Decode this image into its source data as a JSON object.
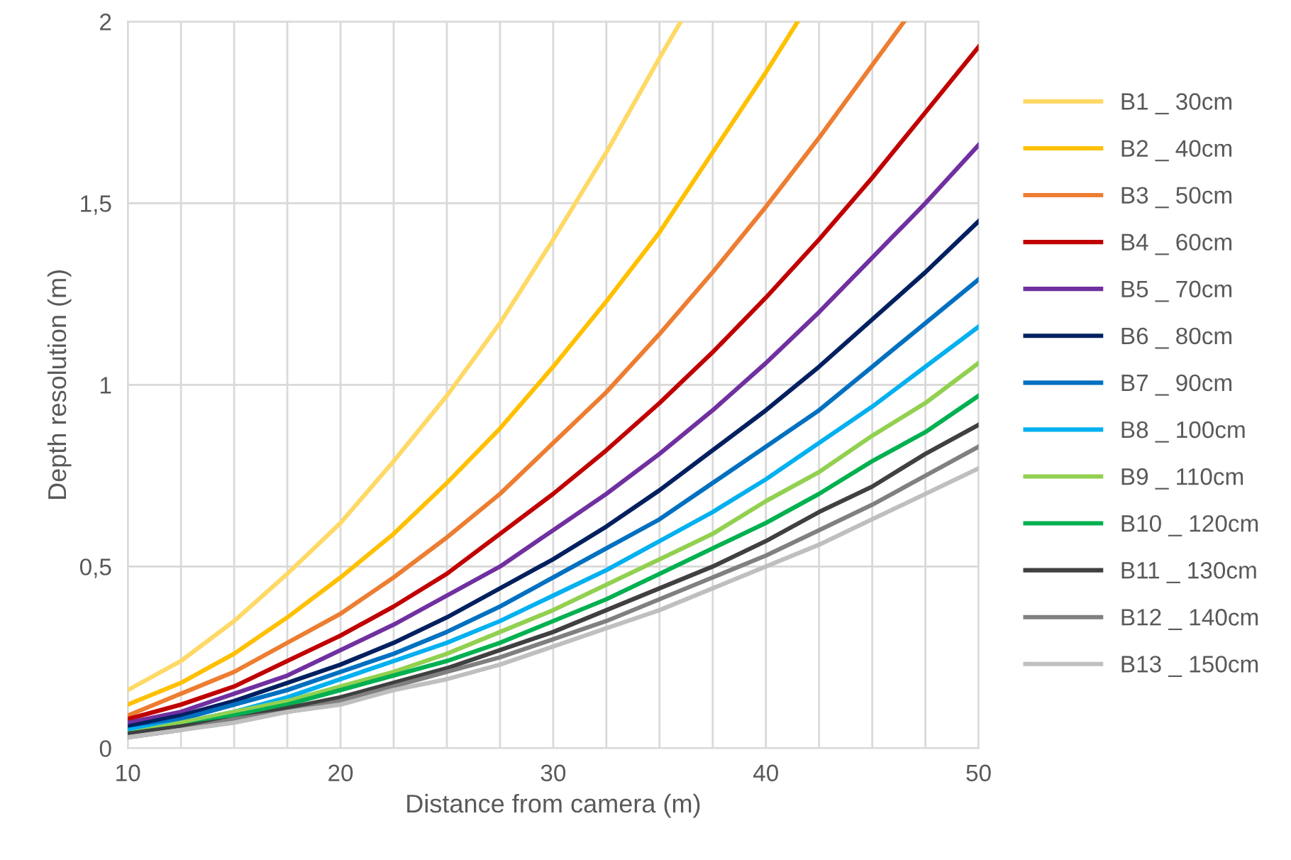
{
  "chart_data": {
    "type": "line",
    "xlabel": "Distance from camera (m)",
    "ylabel": "Depth resolution (m)",
    "x": [
      10,
      12.5,
      15,
      17.5,
      20,
      22.5,
      25,
      27.5,
      30,
      32.5,
      35,
      37.5,
      40,
      42.5,
      45,
      47.5,
      50
    ],
    "xlim": [
      10,
      50
    ],
    "ylim": [
      0,
      2
    ],
    "xticks": [
      10,
      {
        "value": 12.5,
        "label": null
      },
      {
        "value": 15,
        "label": null
      },
      {
        "value": 17.5,
        "label": null
      },
      20,
      {
        "value": 22.5,
        "label": null
      },
      {
        "value": 25,
        "label": null
      },
      {
        "value": 27.5,
        "label": null
      },
      30,
      {
        "value": 32.5,
        "label": null
      },
      {
        "value": 35,
        "label": null
      },
      {
        "value": 37.5,
        "label": null
      },
      40,
      {
        "value": 42.5,
        "label": null
      },
      {
        "value": 45,
        "label": null
      },
      {
        "value": 47.5,
        "label": null
      },
      50
    ],
    "yticks": [
      0,
      {
        "value": 0.5,
        "label": "0,5"
      },
      1,
      {
        "value": 1.5,
        "label": "1,5"
      },
      2
    ],
    "grid": true,
    "legend": "right",
    "marker": "none",
    "line_style": "solid",
    "series": [
      {
        "name": "B1 _ 30cm",
        "color": "#ffd966",
        "x": [
          10,
          12.5,
          15,
          17.5,
          20,
          22.5,
          25,
          27.5,
          30,
          32.5,
          35,
          36
        ],
        "values": [
          0.16,
          0.24,
          0.35,
          0.48,
          0.62,
          0.79,
          0.97,
          1.17,
          1.4,
          1.64,
          1.9,
          2
        ]
      },
      {
        "name": "B2 _ 40cm",
        "color": "#ffc000",
        "x": [
          10,
          12.5,
          15,
          17.5,
          20,
          22.5,
          25,
          27.5,
          30,
          32.5,
          35,
          37.5,
          40,
          41.5
        ],
        "values": [
          0.12,
          0.18,
          0.26,
          0.36,
          0.47,
          0.59,
          0.73,
          0.88,
          1.05,
          1.23,
          1.42,
          1.64,
          1.86,
          2
        ]
      },
      {
        "name": "B3 _ 50cm",
        "color": "#ed7d31",
        "x": [
          10,
          12.5,
          15,
          17.5,
          20,
          22.5,
          25,
          27.5,
          30,
          32.5,
          35,
          37.5,
          40,
          42.5,
          45,
          46.5
        ],
        "values": [
          0.09,
          0.15,
          0.21,
          0.29,
          0.37,
          0.47,
          0.58,
          0.7,
          0.84,
          0.98,
          1.14,
          1.31,
          1.49,
          1.68,
          1.88,
          2
        ]
      },
      {
        "name": "B4 _ 60cm",
        "color": "#c00000",
        "values": [
          0.08,
          0.12,
          0.17,
          0.24,
          0.31,
          0.39,
          0.48,
          0.59,
          0.7,
          0.82,
          0.95,
          1.09,
          1.24,
          1.4,
          1.57,
          1.75,
          1.93
        ]
      },
      {
        "name": "B5 _ 70cm",
        "color": "#7030a0",
        "values": [
          0.07,
          0.1,
          0.15,
          0.2,
          0.27,
          0.34,
          0.42,
          0.5,
          0.6,
          0.7,
          0.81,
          0.93,
          1.06,
          1.2,
          1.35,
          1.5,
          1.66
        ]
      },
      {
        "name": "B6 _ 80cm",
        "color": "#002060",
        "values": [
          0.06,
          0.09,
          0.13,
          0.18,
          0.23,
          0.29,
          0.36,
          0.44,
          0.52,
          0.61,
          0.71,
          0.82,
          0.93,
          1.05,
          1.18,
          1.31,
          1.45
        ]
      },
      {
        "name": "B7 _ 90cm",
        "color": "#0070c0",
        "values": [
          0.05,
          0.08,
          0.12,
          0.16,
          0.21,
          0.26,
          0.32,
          0.39,
          0.47,
          0.55,
          0.63,
          0.73,
          0.83,
          0.93,
          1.05,
          1.17,
          1.29
        ]
      },
      {
        "name": "B8 _ 100cm",
        "color": "#00b0f0",
        "values": [
          0.05,
          0.07,
          0.1,
          0.14,
          0.19,
          0.24,
          0.29,
          0.35,
          0.42,
          0.49,
          0.57,
          0.65,
          0.74,
          0.84,
          0.94,
          1.05,
          1.16
        ]
      },
      {
        "name": "B9 _ 110cm",
        "color": "#92d050",
        "values": [
          0.04,
          0.07,
          0.1,
          0.13,
          0.17,
          0.21,
          0.26,
          0.32,
          0.38,
          0.45,
          0.52,
          0.59,
          0.68,
          0.76,
          0.86,
          0.95,
          1.06
        ]
      },
      {
        "name": "B10 _ 120cm",
        "color": "#00b050",
        "values": [
          0.04,
          0.06,
          0.09,
          0.12,
          0.16,
          0.2,
          0.24,
          0.29,
          0.35,
          0.41,
          0.48,
          0.55,
          0.62,
          0.7,
          0.79,
          0.87,
          0.97
        ]
      },
      {
        "name": "B11 _ 130cm",
        "color": "#404040",
        "values": [
          0.04,
          0.06,
          0.08,
          0.11,
          0.14,
          0.18,
          0.22,
          0.27,
          0.32,
          0.38,
          0.44,
          0.5,
          0.57,
          0.65,
          0.72,
          0.81,
          0.89
        ]
      },
      {
        "name": "B12 _ 140cm",
        "color": "#808080",
        "values": [
          0.03,
          0.05,
          0.08,
          0.1,
          0.13,
          0.17,
          0.21,
          0.25,
          0.3,
          0.35,
          0.41,
          0.47,
          0.53,
          0.6,
          0.67,
          0.75,
          0.83
        ]
      },
      {
        "name": "B13 _ 150cm",
        "color": "#bfbfbf",
        "values": [
          0.03,
          0.05,
          0.07,
          0.1,
          0.12,
          0.16,
          0.19,
          0.23,
          0.28,
          0.33,
          0.38,
          0.44,
          0.5,
          0.56,
          0.63,
          0.7,
          0.77
        ]
      }
    ]
  }
}
